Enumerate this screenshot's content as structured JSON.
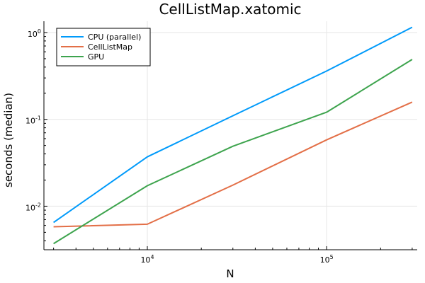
{
  "chart_data": {
    "type": "line",
    "title": "CellListMap.xatomic",
    "xlabel": "N",
    "ylabel": "seconds (median)",
    "xscale": "log",
    "yscale": "log",
    "xlim": [
      2650,
      320000
    ],
    "ylim": [
      0.00315,
      1.35
    ],
    "grid": true,
    "legend_position": "top-left",
    "x_ticks": [
      {
        "base": "10",
        "exp": "4",
        "value": 10000
      },
      {
        "base": "10",
        "exp": "5",
        "value": 100000
      }
    ],
    "y_ticks": [
      {
        "base": "10",
        "exp": "-2",
        "value": 0.01
      },
      {
        "base": "10",
        "exp": "-1",
        "value": 0.1
      },
      {
        "base": "10",
        "exp": "0",
        "value": 1
      }
    ],
    "x": [
      3000,
      10000,
      30000,
      100000,
      300000
    ],
    "series": [
      {
        "name": "CPU (parallel)",
        "color": "#009AFA",
        "values": [
          0.0065,
          0.037,
          0.11,
          0.36,
          1.15
        ]
      },
      {
        "name": "CellListMap",
        "color": "#E36F47",
        "values": [
          0.0058,
          0.0062,
          0.0175,
          0.058,
          0.158
        ]
      },
      {
        "name": "GPU",
        "color": "#3EA44E",
        "values": [
          0.0037,
          0.0172,
          0.049,
          0.121,
          0.49
        ]
      }
    ]
  }
}
